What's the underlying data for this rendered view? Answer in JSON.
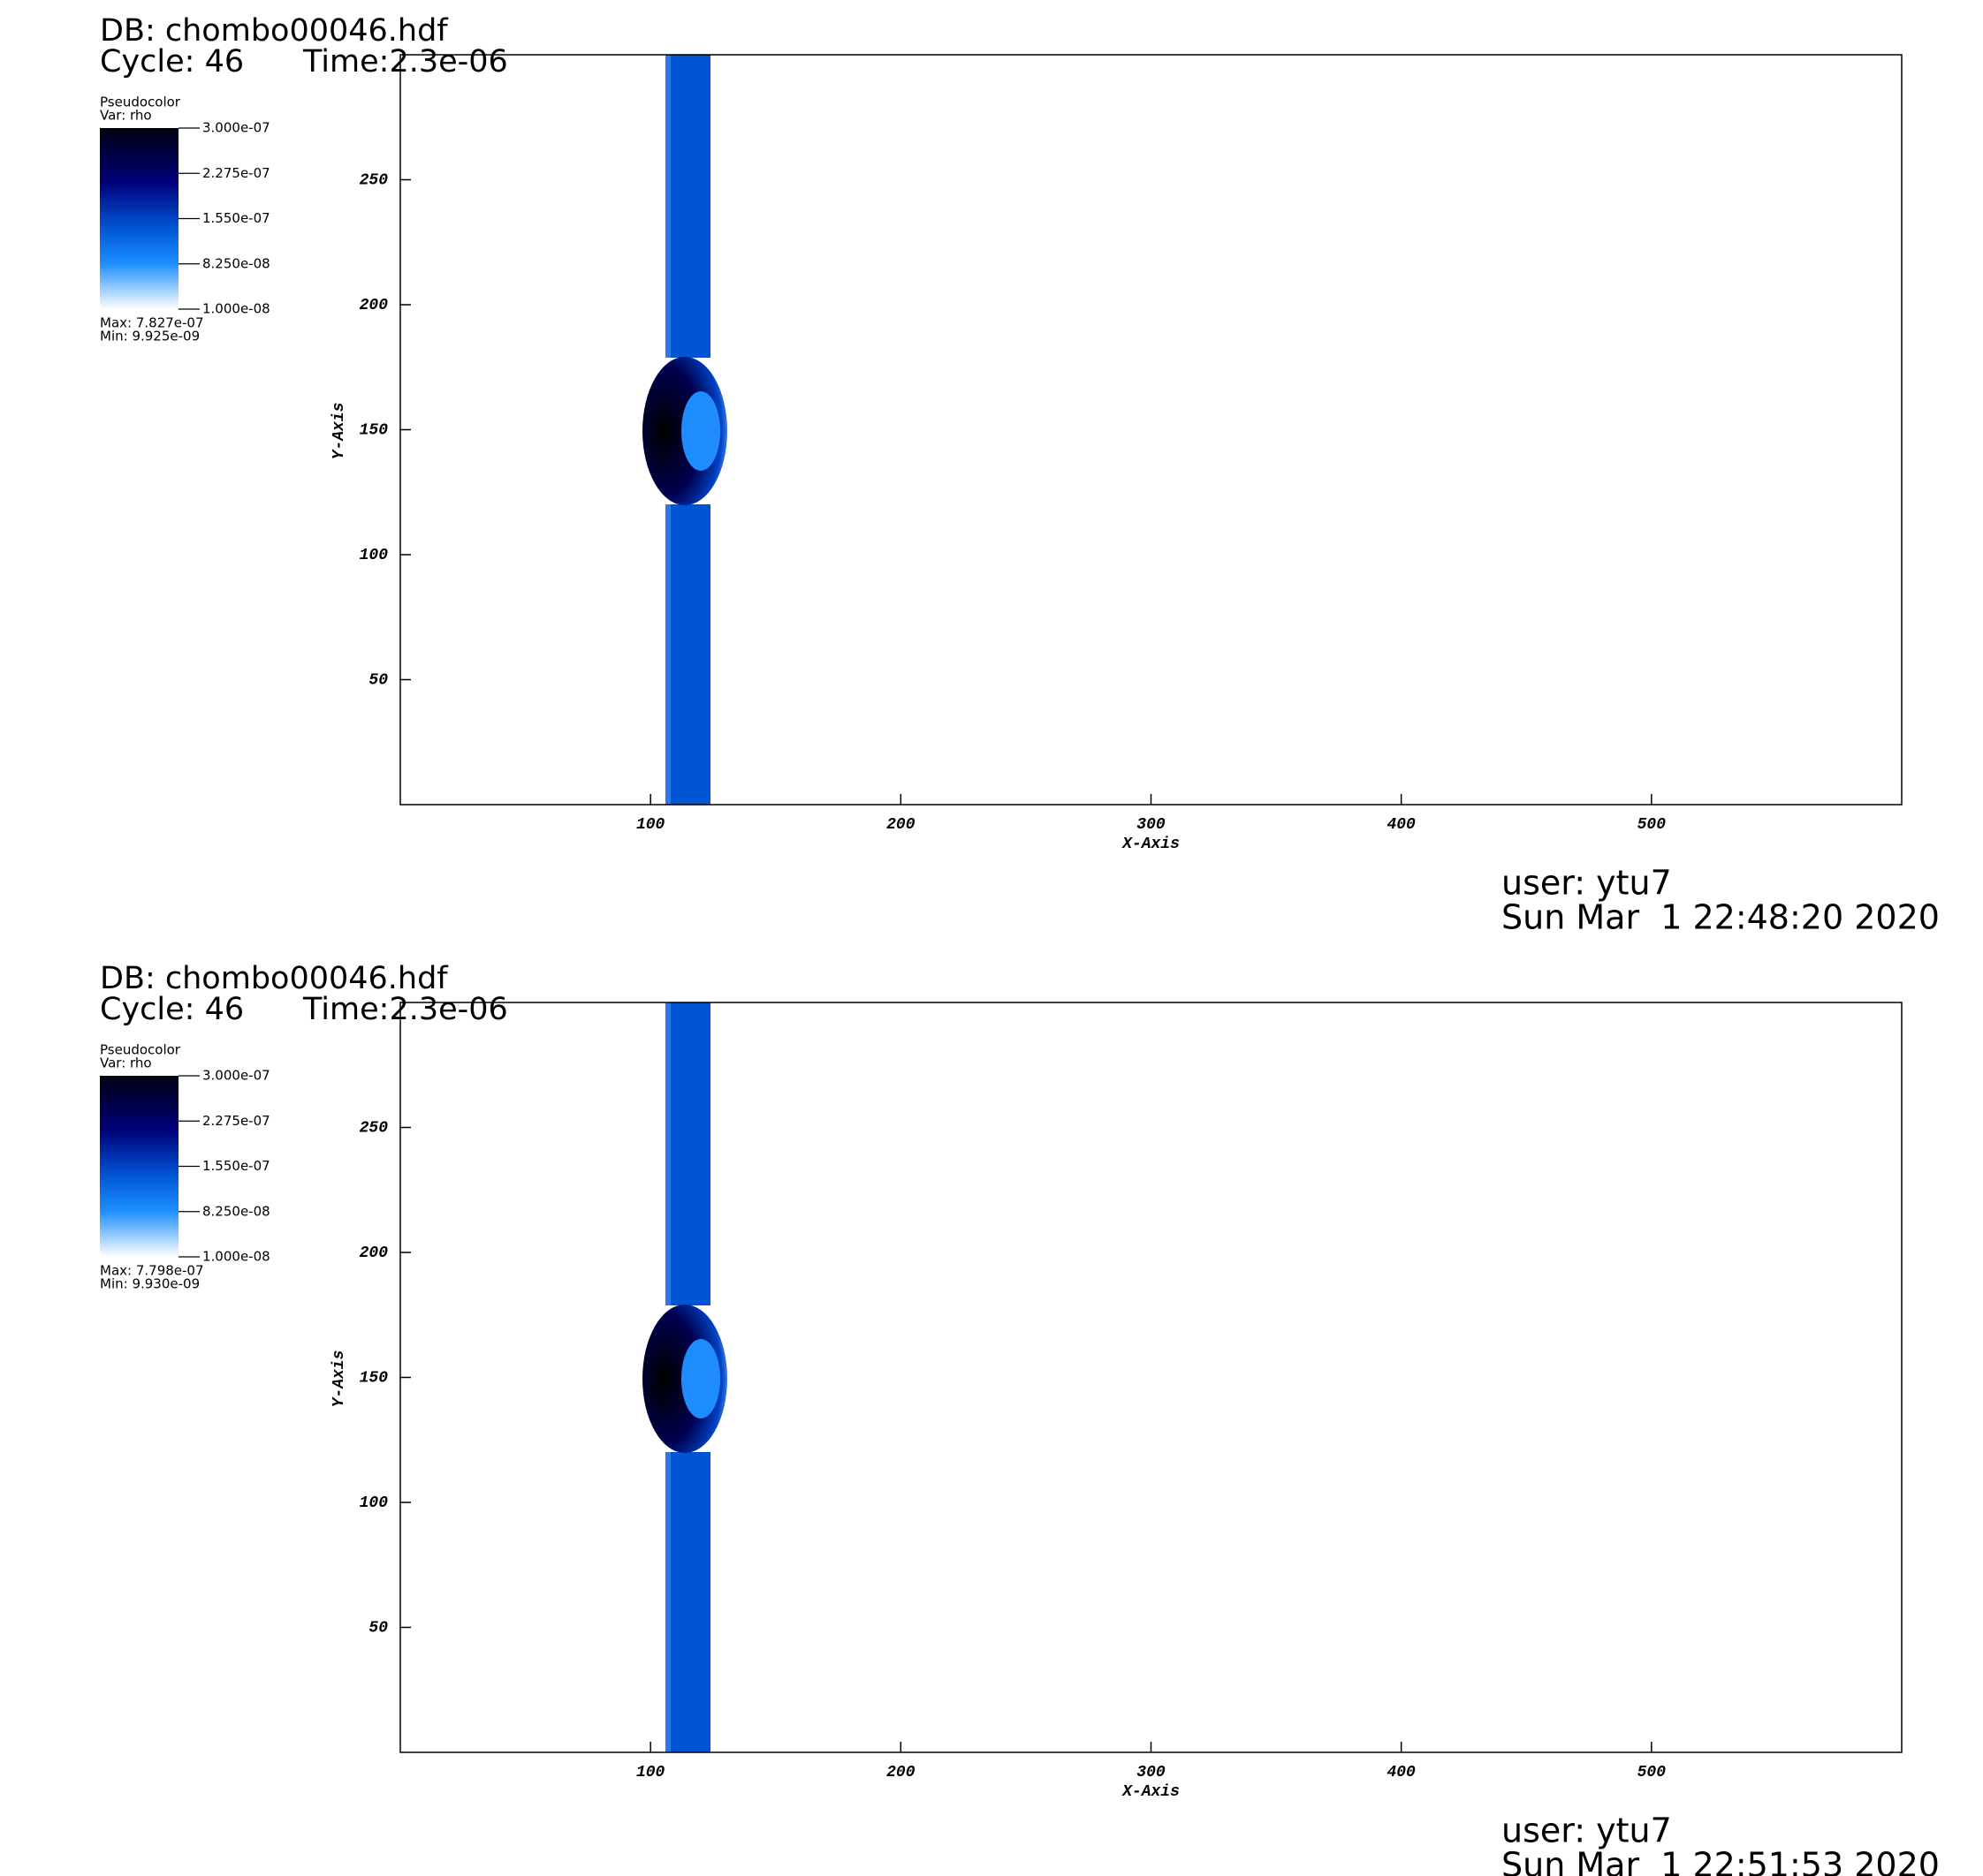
{
  "chart_data": [
    {
      "type": "pseudocolor",
      "db": "DB: chombo00046.hdf",
      "cycle": "Cycle: 46",
      "time": "Time:2.3e-06",
      "plot_name": "Pseudocolor",
      "variable": "Var: rho",
      "max": "Max: 7.827e-07",
      "min": "Min: 9.925e-09",
      "xlabel": "X-Axis",
      "ylabel": "Y-Axis",
      "xlim": [
        0,
        600
      ],
      "ylim": [
        0,
        300
      ],
      "xticks": [
        100,
        200,
        300,
        400,
        500
      ],
      "yticks": [
        50,
        100,
        150,
        200,
        250
      ],
      "colorbar": {
        "lim": [
          1e-08,
          3e-07
        ],
        "ticks": [
          {
            "value": 3e-07,
            "label": "3.000e-07"
          },
          {
            "value": 2.275e-07,
            "label": "2.275e-07"
          },
          {
            "value": 1.55e-07,
            "label": "1.550e-07"
          },
          {
            "value": 8.25e-08,
            "label": "8.250e-08"
          },
          {
            "value": 1e-08,
            "label": "1.000e-08"
          }
        ]
      },
      "user": "user: ytu7",
      "date": "Sun Mar  1 22:48:20 2020"
    },
    {
      "type": "pseudocolor",
      "db": "DB: chombo00046.hdf",
      "cycle": "Cycle: 46",
      "time": "Time:2.3e-06",
      "plot_name": "Pseudocolor",
      "variable": "Var: rho",
      "max": "Max: 7.798e-07",
      "min": "Min: 9.930e-09",
      "xlabel": "X-Axis",
      "ylabel": "Y-Axis",
      "xlim": [
        0,
        600
      ],
      "ylim": [
        0,
        300
      ],
      "xticks": [
        100,
        200,
        300,
        400,
        500
      ],
      "yticks": [
        50,
        100,
        150,
        200,
        250
      ],
      "colorbar": {
        "lim": [
          1e-08,
          3e-07
        ],
        "ticks": [
          {
            "value": 3e-07,
            "label": "3.000e-07"
          },
          {
            "value": 2.275e-07,
            "label": "2.275e-07"
          },
          {
            "value": 1.55e-07,
            "label": "1.550e-07"
          },
          {
            "value": 8.25e-08,
            "label": "8.250e-08"
          },
          {
            "value": 1e-08,
            "label": "1.000e-08"
          }
        ]
      },
      "user": "user: ytu7",
      "date": "Sun Mar  1 22:51:53 2020"
    }
  ]
}
